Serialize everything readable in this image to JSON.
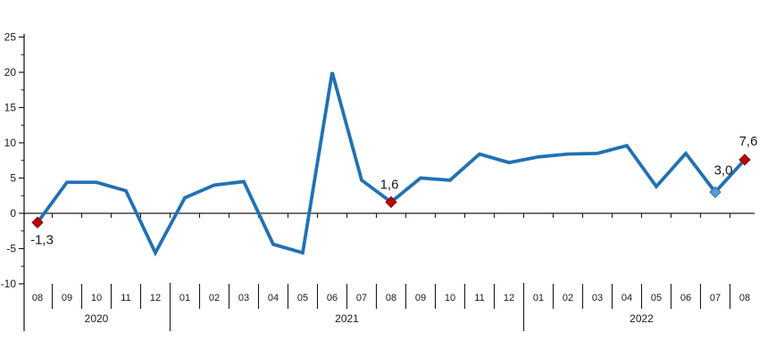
{
  "chart_data": {
    "type": "line",
    "title": "",
    "xlabel": "",
    "ylabel": "",
    "ylim": [
      -10,
      25
    ],
    "yticks": [
      25,
      20,
      15,
      10,
      5,
      0,
      -5,
      -10
    ],
    "ytick_minor_step": 2.5,
    "grid": false,
    "legend": false,
    "line_color": "#2271b3",
    "axis_color": "#1a1a1a",
    "year_groups": [
      {
        "year": "2020",
        "months": [
          "08",
          "09",
          "10",
          "11",
          "12"
        ]
      },
      {
        "year": "2021",
        "months": [
          "01",
          "02",
          "03",
          "04",
          "05",
          "06",
          "07",
          "08",
          "09",
          "10",
          "11",
          "12"
        ]
      },
      {
        "year": "2022",
        "months": [
          "01",
          "02",
          "03",
          "04",
          "05",
          "06",
          "07",
          "08"
        ]
      }
    ],
    "values": [
      -1.3,
      4.4,
      4.4,
      3.2,
      -5.6,
      2.2,
      4.0,
      4.5,
      -4.4,
      -5.6,
      20.0,
      4.7,
      1.6,
      5.0,
      4.7,
      8.4,
      7.2,
      8.0,
      8.4,
      8.5,
      9.6,
      3.8,
      8.5,
      3.0,
      7.6
    ],
    "labeled_points": [
      {
        "index": 0,
        "text": "-1,3",
        "marker_color": "#c00000",
        "marker_stroke": "#7f1010",
        "label_offset": [
          5,
          24
        ]
      },
      {
        "index": 12,
        "text": "1,6",
        "marker_color": "#c00000",
        "marker_stroke": "#7f1010",
        "label_offset": [
          -2,
          -15
        ]
      },
      {
        "index": 23,
        "text": "3,0",
        "marker_color": "#5b9bd5",
        "marker_stroke": "#2e6da4",
        "label_offset": [
          9,
          -20
        ]
      },
      {
        "index": 24,
        "text": "7,6",
        "marker_color": "#c00000",
        "marker_stroke": "#7f1010",
        "label_offset": [
          4,
          -16
        ]
      }
    ]
  }
}
